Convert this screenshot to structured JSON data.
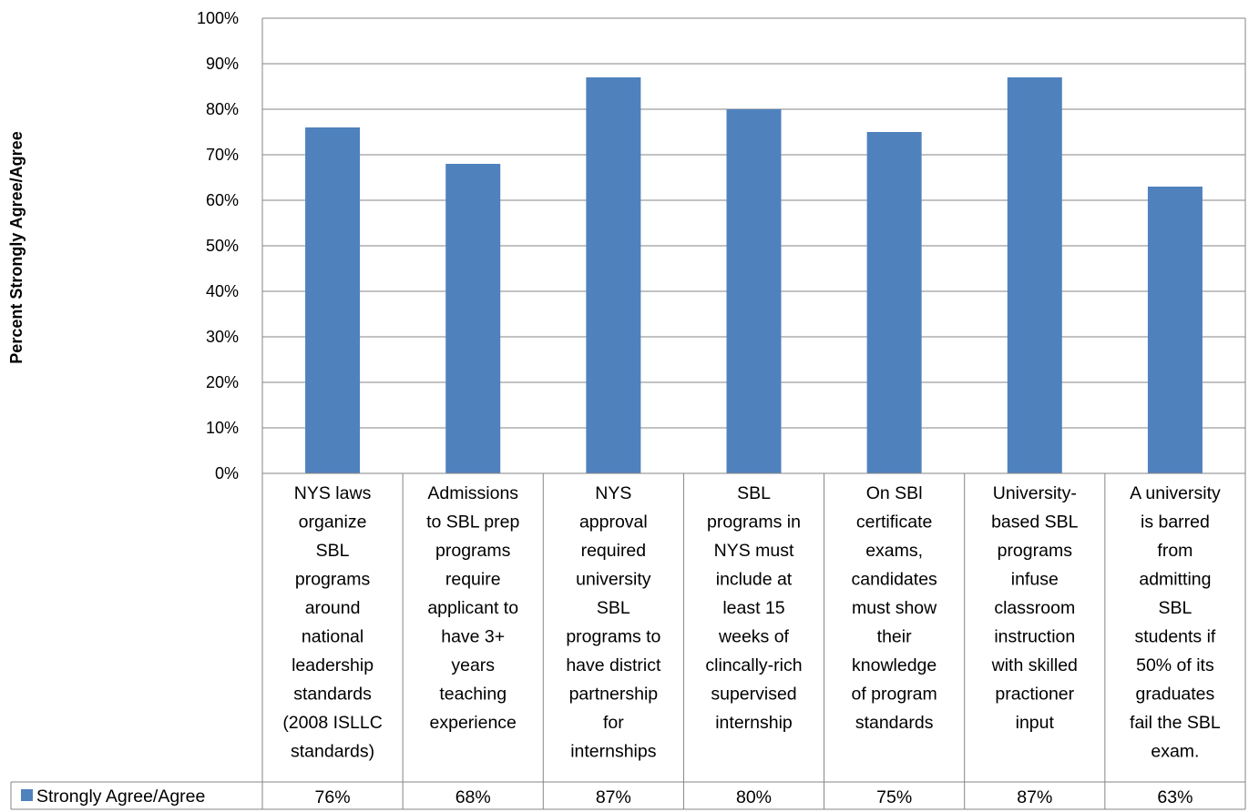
{
  "chart_data": {
    "type": "bar",
    "ylabel": "Percent Strongly Agree/Agree",
    "ylim": [
      0,
      100
    ],
    "yticks": [
      "0%",
      "10%",
      "20%",
      "30%",
      "40%",
      "50%",
      "60%",
      "70%",
      "80%",
      "90%",
      "100%"
    ],
    "grid": true,
    "categories": [
      "NYS laws organize SBL programs around national leadership standards (2008 ISLLC standards)",
      "Admissions to SBL prep programs require applicant to have 3+ years teaching experience",
      "NYS approval required university SBL programs to have district partnership for internships",
      "SBL programs in NYS must include at least 15 weeks of clincally-rich supervised internship",
      "On SBl certificate exams, candidates must show their knowledge of program standards",
      "University-based SBL programs infuse classroom instruction with skilled practioner input",
      "A university is barred from admitting SBL students if 50% of its graduates fail the SBL exam."
    ],
    "category_lines": [
      [
        "NYS laws",
        "organize",
        "SBL",
        "programs",
        "around",
        "national",
        "leadership",
        "standards",
        "(2008 ISLLC",
        "standards)"
      ],
      [
        "Admissions",
        "to SBL prep",
        "programs",
        "require",
        "applicant to",
        "have 3+",
        "years",
        "teaching",
        "experience"
      ],
      [
        "NYS",
        "approval",
        "required",
        "university",
        "SBL",
        "programs to",
        "have district",
        "partnership",
        "for",
        "internships"
      ],
      [
        "SBL",
        "programs in",
        "NYS must",
        "include at",
        "least 15",
        "weeks of",
        "clincally-rich",
        "supervised",
        "internship"
      ],
      [
        "On SBl",
        "certificate",
        "exams,",
        "candidates",
        "must show",
        "their",
        "knowledge",
        "of program",
        "standards"
      ],
      [
        "University-",
        "based SBL",
        "programs",
        "infuse",
        "classroom",
        "instruction",
        "with skilled",
        "practioner",
        "input"
      ],
      [
        "A university",
        "is barred",
        "from",
        "admitting",
        "SBL",
        "students if",
        "50% of its",
        "graduates",
        "fail the SBL",
        "exam."
      ]
    ],
    "series": [
      {
        "name": "Strongly Agree/Agree",
        "values": [
          76,
          68,
          87,
          80,
          75,
          87,
          63
        ],
        "labels": [
          "76%",
          "68%",
          "87%",
          "80%",
          "75%",
          "87%",
          "63%"
        ],
        "color": "#4F81BD"
      }
    ],
    "legend": "data-table-left"
  }
}
